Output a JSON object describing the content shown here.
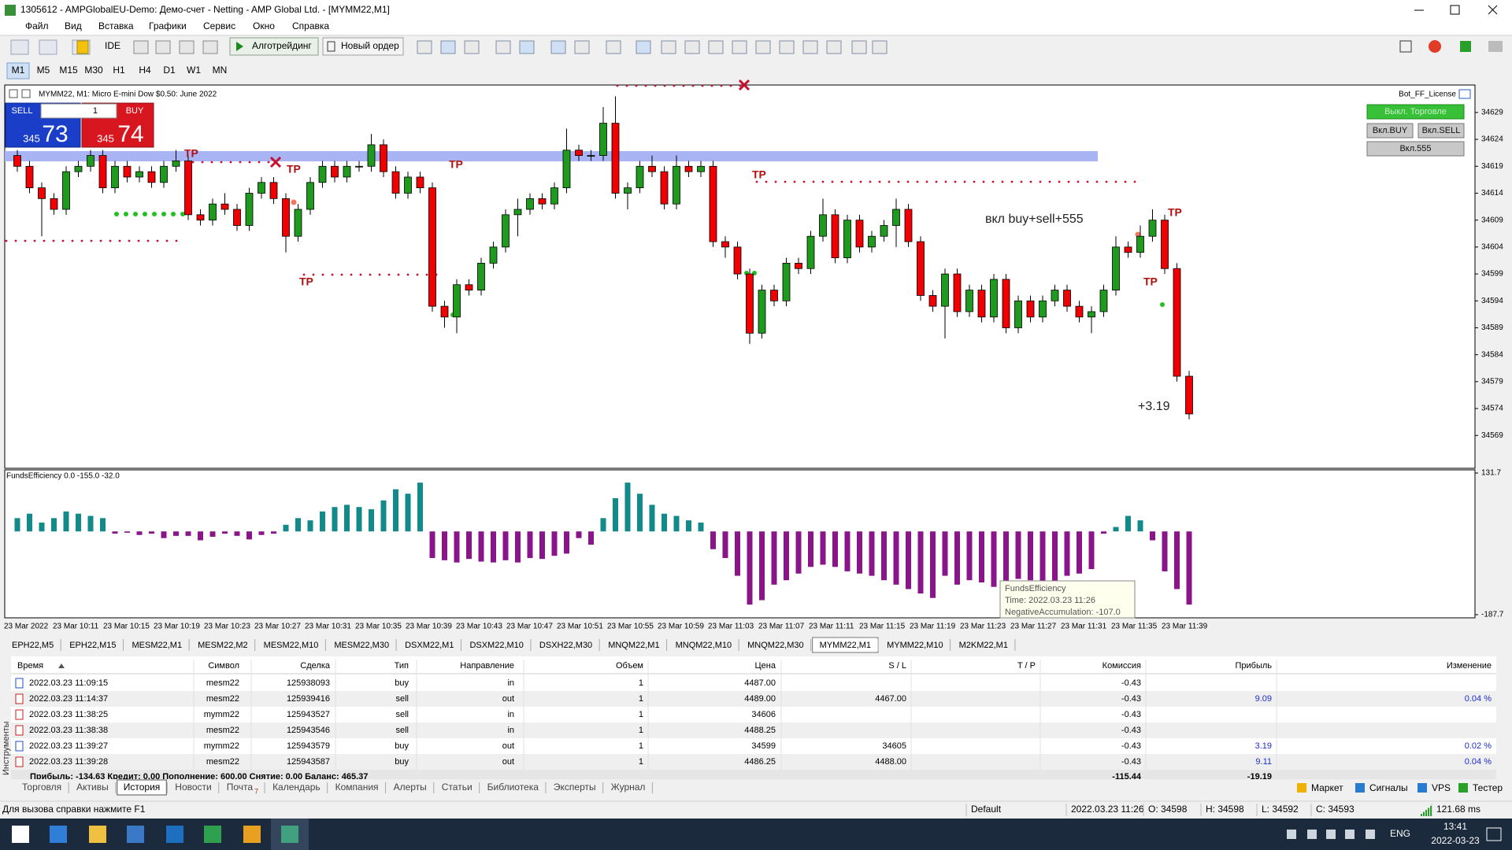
{
  "window": {
    "title": "1305612 - AMPGlobalEU-Demo: Демо-счет - Netting - AMP Global Ltd. - [MYMM22,M1]",
    "menu": [
      "Файл",
      "Вид",
      "Вставка",
      "Графики",
      "Сервис",
      "Окно",
      "Справка"
    ],
    "toolbar": {
      "ide": "IDE",
      "algo": "Алготрейдинг",
      "order": "Новый ордер"
    },
    "timeframes": [
      "M1",
      "M5",
      "M15",
      "M30",
      "H1",
      "H4",
      "D1",
      "W1",
      "MN"
    ],
    "side_label": "Инструменты"
  },
  "chart_data": {
    "type": "candlestick",
    "title": "MYMM22, M1:  Micro E-mini Dow $0.50: June 2022",
    "up_color": "#1f9a1f",
    "down_color": "#f00000",
    "ylim": [
      34562.9,
      34634.1
    ],
    "yticks": [
      34629,
      34624,
      34619,
      34614,
      34609,
      34604,
      34599,
      34594,
      34589,
      34584,
      34579,
      34574,
      34569
    ],
    "x": [
      "23 Mar 2022",
      "23 Mar 10:11",
      "23 Mar 10:15",
      "23 Mar 10:19",
      "23 Mar 10:23",
      "23 Mar 10:27",
      "23 Mar 10:31",
      "23 Mar 10:35",
      "23 Mar 10:39",
      "23 Mar 10:43",
      "23 Mar 10:47",
      "23 Mar 10:51",
      "23 Mar 10:55",
      "23 Mar 10:59",
      "23 Mar 11:03",
      "23 Mar 11:07",
      "23 Mar 11:11",
      "23 Mar 11:15",
      "23 Mar 11:19",
      "23 Mar 11:23",
      "23 Mar 11:27",
      "23 Mar 11:31",
      "23 Mar 11:35",
      "23 Mar 11:39"
    ],
    "candles": [
      [
        34621,
        34622,
        34618,
        34619
      ],
      [
        34619,
        34620,
        34614,
        34615
      ],
      [
        34615,
        34616,
        34606,
        34613
      ],
      [
        34613,
        34614,
        34610,
        34611
      ],
      [
        34611,
        34619,
        34610,
        34618
      ],
      [
        34618,
        34620,
        34617,
        34619
      ],
      [
        34619,
        34622,
        34618,
        34621
      ],
      [
        34621,
        34622,
        34614,
        34615
      ],
      [
        34615,
        34620,
        34614,
        34619
      ],
      [
        34619,
        34620,
        34616,
        34617
      ],
      [
        34617,
        34619,
        34616,
        34618
      ],
      [
        34618,
        34619,
        34615,
        34616
      ],
      [
        34616,
        34620,
        34615,
        34619
      ],
      [
        34619,
        34622,
        34618,
        34620
      ],
      [
        34620,
        34621,
        34609,
        34610
      ],
      [
        34610,
        34611,
        34608,
        34609
      ],
      [
        34609,
        34613,
        34608,
        34612
      ],
      [
        34612,
        34614,
        34610,
        34611
      ],
      [
        34611,
        34612,
        34607,
        34608
      ],
      [
        34608,
        34615,
        34607,
        34614
      ],
      [
        34614,
        34617,
        34613,
        34616
      ],
      [
        34616,
        34617,
        34612,
        34613
      ],
      [
        34613,
        34614,
        34603,
        34606
      ],
      [
        34606,
        34612,
        34605,
        34611
      ],
      [
        34611,
        34617,
        34610,
        34616
      ],
      [
        34616,
        34620,
        34615,
        34619
      ],
      [
        34619,
        34620,
        34616,
        34617
      ],
      [
        34617,
        34620,
        34616,
        34619
      ],
      [
        34619,
        34620,
        34618,
        34619
      ],
      [
        34619,
        34625,
        34618,
        34623
      ],
      [
        34623,
        34624,
        34617,
        34618
      ],
      [
        34618,
        34619,
        34613,
        34614
      ],
      [
        34614,
        34618,
        34613,
        34617
      ],
      [
        34617,
        34618,
        34614,
        34615
      ],
      [
        34615,
        34616,
        34592,
        34593
      ],
      [
        34593,
        34594,
        34589,
        34591
      ],
      [
        34591,
        34598,
        34588,
        34597
      ],
      [
        34597,
        34598,
        34595,
        34596
      ],
      [
        34596,
        34602,
        34595,
        34601
      ],
      [
        34601,
        34605,
        34600,
        34604
      ],
      [
        34604,
        34611,
        34603,
        34610
      ],
      [
        34610,
        34613,
        34606,
        34611
      ],
      [
        34611,
        34614,
        34610,
        34613
      ],
      [
        34613,
        34614,
        34611,
        34612
      ],
      [
        34612,
        34616,
        34611,
        34615
      ],
      [
        34615,
        34626,
        34614,
        34622
      ],
      [
        34622,
        34623,
        34620,
        34621
      ],
      [
        34621,
        34622,
        34620,
        34621
      ],
      [
        34621,
        34630,
        34620,
        34627
      ],
      [
        34627,
        34632,
        34613,
        34614
      ],
      [
        34614,
        34616,
        34611,
        34615
      ],
      [
        34615,
        34620,
        34614,
        34619
      ],
      [
        34619,
        34621,
        34617,
        34618
      ],
      [
        34618,
        34619,
        34611,
        34612
      ],
      [
        34612,
        34621,
        34611,
        34619
      ],
      [
        34619,
        34620,
        34617,
        34618
      ],
      [
        34618,
        34620,
        34617,
        34619
      ],
      [
        34619,
        34620,
        34604,
        34605
      ],
      [
        34605,
        34606,
        34602,
        34604
      ],
      [
        34604,
        34605,
        34598,
        34599
      ],
      [
        34599,
        34600,
        34586,
        34588
      ],
      [
        34588,
        34597,
        34587,
        34596
      ],
      [
        34596,
        34597,
        34593,
        34594
      ],
      [
        34594,
        34602,
        34593,
        34601
      ],
      [
        34601,
        34602,
        34599,
        34600
      ],
      [
        34600,
        34607,
        34599,
        34606
      ],
      [
        34606,
        34613,
        34605,
        34610
      ],
      [
        34610,
        34611,
        34601,
        34602
      ],
      [
        34602,
        34610,
        34601,
        34609
      ],
      [
        34609,
        34610,
        34603,
        34604
      ],
      [
        34604,
        34607,
        34603,
        34606
      ],
      [
        34606,
        34609,
        34605,
        34608
      ],
      [
        34608,
        34613,
        34604,
        34611
      ],
      [
        34611,
        34612,
        34604,
        34605
      ],
      [
        34605,
        34606,
        34594,
        34595
      ],
      [
        34595,
        34596,
        34592,
        34593
      ],
      [
        34593,
        34600,
        34587,
        34599
      ],
      [
        34599,
        34600,
        34591,
        34592
      ],
      [
        34592,
        34597,
        34591,
        34596
      ],
      [
        34596,
        34597,
        34590,
        34591
      ],
      [
        34591,
        34599,
        34590,
        34598
      ],
      [
        34598,
        34599,
        34588,
        34589
      ],
      [
        34589,
        34595,
        34588,
        34594
      ],
      [
        34594,
        34595,
        34590,
        34591
      ],
      [
        34591,
        34595,
        34590,
        34594
      ],
      [
        34594,
        34597,
        34593,
        34596
      ],
      [
        34596,
        34597,
        34592,
        34593
      ],
      [
        34593,
        34594,
        34590,
        34591
      ],
      [
        34591,
        34593,
        34588,
        34592
      ],
      [
        34592,
        34597,
        34591,
        34596
      ],
      [
        34596,
        34606,
        34595,
        34604
      ],
      [
        34604,
        34605,
        34602,
        34603
      ],
      [
        34603,
        34608,
        34602,
        34606
      ],
      [
        34606,
        34611,
        34605,
        34609
      ],
      [
        34609,
        34610,
        34599,
        34600
      ],
      [
        34600,
        34601,
        34579,
        34580
      ],
      [
        34580,
        34581,
        34572,
        34573
      ]
    ],
    "annotations": [
      "TP",
      "TP",
      "TP",
      "TP",
      "TP",
      "TP",
      "TP",
      "вкл buy+sell+555",
      "+3.19"
    ]
  },
  "indicator": {
    "type": "bar",
    "title": "FundsEfficiency 0.0 -155.0 -32.0",
    "positive_color": "#138a8a",
    "negative_color": "#8a158a",
    "ylim": [
      -187.7,
      131.7
    ],
    "yticks": [
      131.7,
      -187.7
    ],
    "values": [
      30,
      40,
      20,
      30,
      45,
      40,
      35,
      30,
      -5,
      -3,
      -8,
      -5,
      -15,
      -10,
      -10,
      -20,
      -12,
      -5,
      -10,
      -18,
      -8,
      -5,
      15,
      30,
      25,
      45,
      55,
      60,
      55,
      50,
      70,
      95,
      85,
      110,
      -60,
      -65,
      -70,
      -62,
      -68,
      -70,
      -65,
      -70,
      -60,
      -62,
      -55,
      -50,
      -15,
      -30,
      30,
      75,
      110,
      85,
      60,
      40,
      35,
      25,
      20,
      -40,
      -60,
      -100,
      -165,
      -155,
      -120,
      -110,
      -95,
      -80,
      -75,
      -80,
      -90,
      -95,
      -100,
      -110,
      -120,
      -130,
      -140,
      -150,
      -100,
      -120,
      -110,
      -115,
      -125,
      -130,
      -107,
      -110,
      -120,
      -115,
      -100,
      -95,
      -85,
      -5,
      10,
      35,
      25,
      -20,
      -90,
      -130,
      -165
    ],
    "tooltip": [
      "FundsEfficiency",
      "Time: 2022.03.23 11:26",
      "NegativeAccumulation: -107.0"
    ]
  },
  "trade_panel": {
    "sell": "SELL",
    "buy": "BUY",
    "volume": "1",
    "bid_big": "345",
    "bid_small": "73",
    "ask_big": "345",
    "ask_small": "74"
  },
  "bot_panel": {
    "title": "Bot_FF_License",
    "buttons": [
      "Выкл. Торговле",
      "Вкл.BUY",
      "Вкл.SELL",
      "Вкл.555"
    ]
  },
  "chart_tabs": [
    "EPH22,M5",
    "EPH22,M15",
    "MESM22,M1",
    "MESM22,M2",
    "MESM22,M10",
    "MESM22,M30",
    "DSXM22,M1",
    "DSXM22,M10",
    "DSXH22,M30",
    "MNQM22,M1",
    "MNQM22,M10",
    "MNQM22,M30",
    "MYMM22,M1",
    "MYMM22,M10",
    "M2KM22,M1"
  ],
  "active_chart_tab": 12,
  "history": {
    "columns": [
      "Время",
      "Символ",
      "Сделка",
      "Тип",
      "Направление",
      "Объем",
      "Цена",
      "S / L",
      "T / P",
      "Комиссия",
      "Прибыль",
      "Изменение"
    ],
    "rows": [
      [
        "2022.03.23 11:09:15",
        "mesm22",
        "125938093",
        "buy",
        "in",
        "1",
        "4487.00",
        null,
        null,
        "-0.43",
        null,
        null
      ],
      [
        "2022.03.23 11:14:37",
        "mesm22",
        "125939416",
        "sell",
        "out",
        "1",
        "4489.00",
        "4467.00",
        null,
        "-0.43",
        "9.09",
        "0.04 %"
      ],
      [
        "2022.03.23 11:38:25",
        "mymm22",
        "125943527",
        "sell",
        "in",
        "1",
        "34606",
        null,
        null,
        "-0.43",
        null,
        null
      ],
      [
        "2022.03.23 11:38:38",
        "mesm22",
        "125943546",
        "sell",
        "in",
        "1",
        "4488.25",
        null,
        null,
        "-0.43",
        null,
        null
      ],
      [
        "2022.03.23 11:39:27",
        "mymm22",
        "125943579",
        "buy",
        "out",
        "1",
        "34599",
        "34605",
        null,
        "-0.43",
        "3.19",
        "0.02 %"
      ],
      [
        "2022.03.23 11:39:28",
        "mesm22",
        "125943587",
        "buy",
        "out",
        "1",
        "4486.25",
        "4488.00",
        null,
        "-0.43",
        "9.11",
        "0.04 %"
      ]
    ],
    "totals": {
      "summary": "Прибыль: -134.63  Кредит: 0.00  Пополнение: 600.00  Снятие: 0.00  Баланс: 465.37",
      "commission": "-115.44",
      "profit": "-19.19"
    }
  },
  "bottom_tabs": [
    "Торговля",
    "Активы",
    "История",
    "Новости",
    "Почта",
    "Календарь",
    "Компания",
    "Алерты",
    "Статьи",
    "Библиотека",
    "Эксперты",
    "Журнал"
  ],
  "active_bottom_tab": 2,
  "mail_badge": "7",
  "services": [
    "Маркет",
    "Сигналы",
    "VPS",
    "Тестер"
  ],
  "status": {
    "help": "Для вызова справки нажмите F1",
    "profile": "Default",
    "time": "2022.03.23 11:26",
    "open": "O: 34598",
    "high": "H: 34598",
    "low": "L: 34592",
    "close": "C: 34593",
    "ping": "121.68 ms"
  },
  "taskbar": {
    "lang": "ENG",
    "clock": "13:41",
    "date": "2022-03-23"
  }
}
